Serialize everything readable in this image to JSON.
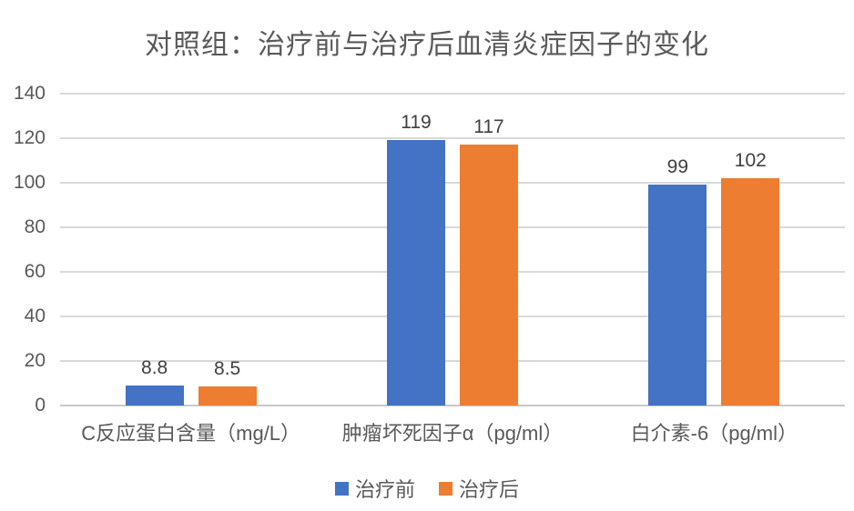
{
  "chart_data": {
    "type": "bar",
    "title": "对照组：治疗前与治疗后血清炎症因子的变化",
    "categories": [
      "C反应蛋白含量（mg/L）",
      "肿瘤坏死因子α（pg/ml）",
      "白介素-6（pg/ml）"
    ],
    "series": [
      {
        "name": "治疗前",
        "color": "#4472C4",
        "values": [
          8.8,
          119,
          99
        ]
      },
      {
        "name": "治疗后",
        "color": "#ED7D31",
        "values": [
          8.5,
          117,
          102
        ]
      }
    ],
    "data_labels": [
      [
        "8.8",
        "119",
        "99"
      ],
      [
        "8.5",
        "117",
        "102"
      ]
    ],
    "xlabel": "",
    "ylabel": "",
    "ylim": [
      0,
      140
    ],
    "yticks": [
      0,
      20,
      40,
      60,
      80,
      100,
      120,
      140
    ],
    "grid": true,
    "legend_position": "bottom",
    "colors": {
      "series_before": "#4472C4",
      "series_after": "#ED7D31",
      "gridline": "#D9D9D9",
      "axis_line": "#C9C9C9",
      "title_text": "#595959",
      "axis_text": "#595959",
      "data_label_text": "#404040"
    }
  }
}
